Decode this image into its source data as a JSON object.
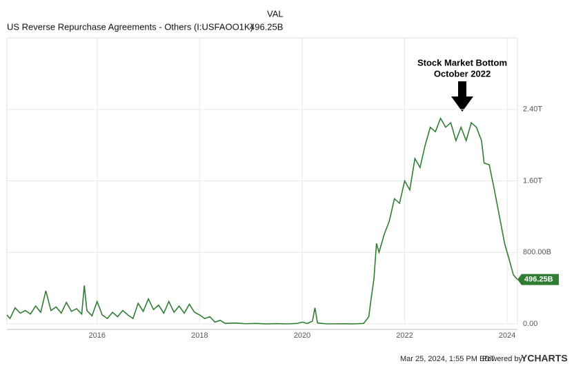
{
  "chart_data": {
    "type": "line",
    "header_label": "VAL",
    "annotation": [
      "Stock Market Bottom",
      "October 2022"
    ],
    "x": [
      2014.24,
      2014.3,
      2014.4,
      2014.5,
      2014.6,
      2014.7,
      2014.8,
      2014.9,
      2015.0,
      2015.1,
      2015.2,
      2015.3,
      2015.4,
      2015.5,
      2015.6,
      2015.7,
      2015.75,
      2015.8,
      2015.9,
      2016.0,
      2016.1,
      2016.2,
      2016.3,
      2016.4,
      2016.5,
      2016.6,
      2016.7,
      2016.8,
      2016.9,
      2017.0,
      2017.1,
      2017.2,
      2017.3,
      2017.4,
      2017.5,
      2017.6,
      2017.7,
      2017.8,
      2017.9,
      2018.0,
      2018.1,
      2018.2,
      2018.3,
      2018.4,
      2018.5,
      2018.7,
      2018.9,
      2019.1,
      2019.3,
      2019.5,
      2019.7,
      2019.9,
      2020.0,
      2020.1,
      2020.2,
      2020.25,
      2020.3,
      2020.5,
      2020.8,
      2021.0,
      2021.2,
      2021.3,
      2021.35,
      2021.4,
      2021.45,
      2021.5,
      2021.6,
      2021.7,
      2021.8,
      2021.9,
      2022.0,
      2022.1,
      2022.2,
      2022.3,
      2022.4,
      2022.5,
      2022.6,
      2022.7,
      2022.8,
      2022.9,
      2023.0,
      2023.1,
      2023.2,
      2023.3,
      2023.4,
      2023.5,
      2023.55,
      2023.65,
      2023.75,
      2023.85,
      2023.95,
      2024.05,
      2024.12,
      2024.2
    ],
    "series": [
      {
        "name": "US Reverse Repurchase Agreements - Others (I:USFAOO1K)",
        "color": "#2e7d32",
        "values": [
          100,
          60,
          180,
          120,
          150,
          110,
          200,
          130,
          370,
          150,
          190,
          120,
          240,
          140,
          170,
          110,
          430,
          150,
          90,
          250,
          100,
          60,
          130,
          80,
          150,
          100,
          60,
          230,
          140,
          280,
          160,
          210,
          120,
          250,
          130,
          200,
          120,
          220,
          130,
          100,
          60,
          80,
          20,
          40,
          5,
          10,
          2,
          5,
          0,
          3,
          0,
          5,
          20,
          5,
          30,
          180,
          10,
          0,
          2,
          0,
          5,
          80,
          300,
          500,
          900,
          800,
          1000,
          1150,
          1400,
          1350,
          1600,
          1500,
          1850,
          1750,
          2000,
          2200,
          2150,
          2300,
          2200,
          2250,
          2050,
          2200,
          2050,
          2250,
          2200,
          2050,
          1800,
          1780,
          1500,
          1200,
          900,
          700,
          550,
          496.25
        ],
        "value_labels": [
          null,
          null,
          null,
          null,
          null,
          null,
          null,
          null,
          null,
          null,
          null,
          null,
          null,
          null,
          null,
          null,
          null,
          null,
          null,
          null,
          null,
          null,
          null,
          null,
          null,
          null,
          null,
          null,
          null,
          null,
          null,
          null,
          null,
          null,
          null,
          null,
          null,
          null,
          null,
          null,
          null,
          null,
          null,
          null,
          null,
          null,
          null,
          null,
          null,
          null,
          null,
          null,
          null,
          null,
          null,
          null,
          null,
          null,
          null,
          null,
          null,
          null,
          null,
          null,
          null,
          null,
          null,
          null,
          null,
          null,
          null,
          null,
          null,
          null,
          null,
          null,
          null,
          null,
          null,
          null,
          null,
          null,
          null,
          null,
          null,
          null,
          null,
          null,
          null,
          null,
          null,
          null,
          null,
          "496.25B"
        ]
      }
    ],
    "xlim": [
      2014.24,
      2024.2
    ],
    "xticks": [
      2016,
      2018,
      2020,
      2022,
      2024
    ],
    "ylim": [
      0,
      3200
    ],
    "yticks": [
      {
        "value": 0,
        "label": "0.00"
      },
      {
        "value": 800,
        "label": "800.00B"
      },
      {
        "value": 1600,
        "label": "1.60T"
      },
      {
        "value": 2400,
        "label": "2.40T"
      }
    ],
    "grid": true
  },
  "footer": {
    "timestamp": "Mar 25, 2024, 1:55 PM EDT",
    "powered_by": "Powered by",
    "brand": "YCHARTS"
  }
}
